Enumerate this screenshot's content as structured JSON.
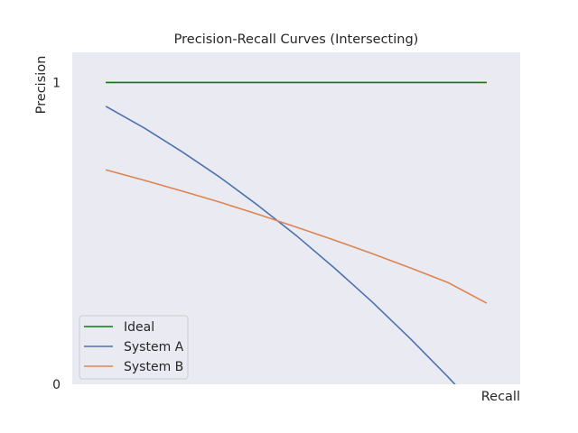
{
  "chart_data": {
    "type": "line",
    "title": "Precision-Recall Curves (Intersecting)",
    "xlabel": "Recall",
    "ylabel": "Precision",
    "xlim": [
      -0.09,
      1.09
    ],
    "ylim": [
      0,
      1.1
    ],
    "y_ticks": [
      {
        "value": 0,
        "label": "0"
      },
      {
        "value": 1,
        "label": "1"
      }
    ],
    "grid": false,
    "legend_position": "lower-left",
    "series": [
      {
        "name": "Ideal",
        "color": "#008000",
        "x": [
          0,
          1
        ],
        "y": [
          1,
          1
        ]
      },
      {
        "name": "System A",
        "color": "#4c72b0",
        "x": [
          0,
          0.1,
          0.2,
          0.3,
          0.4,
          0.5,
          0.6,
          0.7,
          0.8,
          0.9,
          1.0
        ],
        "y": [
          0.92,
          0.849,
          0.77,
          0.685,
          0.592,
          0.493,
          0.386,
          0.273,
          0.152,
          0.024,
          -0.11
        ]
      },
      {
        "name": "System B",
        "color": "#dd8452",
        "x": [
          0,
          0.1,
          0.2,
          0.3,
          0.4,
          0.5,
          0.6,
          0.7,
          0.8,
          0.9,
          1.0
        ],
        "y": [
          0.71,
          0.676,
          0.64,
          0.603,
          0.563,
          0.521,
          0.478,
          0.433,
          0.386,
          0.337,
          0.27
        ]
      }
    ]
  }
}
